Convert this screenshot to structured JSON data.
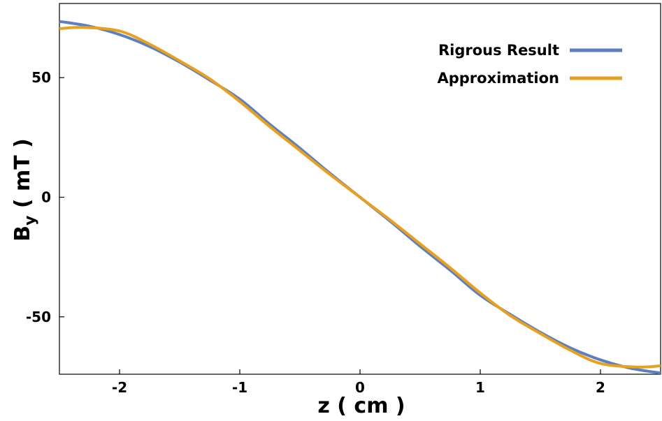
{
  "chart_data": {
    "type": "line",
    "title": "",
    "xlabel": "z ( cm )",
    "ylabel": {
      "base": "B",
      "sub": "y",
      "rest": " ( mT )"
    },
    "xlim": [
      -2.5,
      2.5
    ],
    "ylim": [
      -74,
      81
    ],
    "x_ticks": [
      -2,
      -1,
      0,
      1,
      2
    ],
    "x_tick_labels": [
      "-2",
      "-1",
      "0",
      "1",
      "2"
    ],
    "y_ticks": [
      -50,
      0,
      50
    ],
    "y_tick_labels": [
      "-50",
      "0",
      "50"
    ],
    "grid": false,
    "legend_position": "top-right",
    "series": [
      {
        "name": "Rigrous Result",
        "color": "#5b7fbf",
        "x": [
          -2.5,
          -2.25,
          -2.0,
          -1.75,
          -1.5,
          -1.25,
          -1.0,
          -0.75,
          -0.5,
          -0.25,
          0.0,
          0.25,
          0.5,
          0.75,
          1.0,
          1.25,
          1.5,
          1.75,
          2.0,
          2.25,
          2.5
        ],
        "y": [
          73.5,
          71.5,
          68.0,
          63.0,
          56.5,
          49.0,
          41.0,
          30.5,
          20.5,
          10.0,
          0.0,
          -10.0,
          -20.5,
          -30.5,
          -41.0,
          -49.0,
          -56.5,
          -63.0,
          -68.0,
          -71.5,
          -73.5
        ]
      },
      {
        "name": "Approximation",
        "color": "#e8a020",
        "x": [
          -2.5,
          -2.3,
          -2.0,
          -1.75,
          -1.5,
          -1.25,
          -1.0,
          -0.75,
          -0.5,
          -0.25,
          0.0,
          0.25,
          0.5,
          0.75,
          1.0,
          1.25,
          1.5,
          1.75,
          2.0,
          2.3,
          2.5
        ],
        "y": [
          70.5,
          71.0,
          69.5,
          64.0,
          57.0,
          49.5,
          40.0,
          29.5,
          19.5,
          9.5,
          0.0,
          -9.5,
          -19.5,
          -29.5,
          -40.0,
          -49.5,
          -57.0,
          -64.0,
          -69.5,
          -71.0,
          -70.5
        ]
      }
    ]
  }
}
